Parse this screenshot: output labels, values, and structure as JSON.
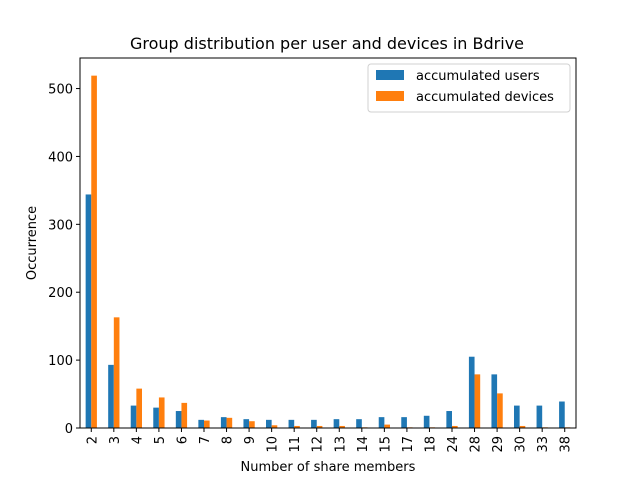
{
  "chart_data": {
    "type": "bar",
    "title": "Group distribution per user and devices in Bdrive",
    "xlabel": "Number of share members",
    "ylabel": "Occurrence",
    "categories": [
      "2",
      "3",
      "4",
      "5",
      "6",
      "7",
      "8",
      "9",
      "10",
      "11",
      "12",
      "13",
      "14",
      "15",
      "17",
      "18",
      "24",
      "28",
      "29",
      "30",
      "33",
      "38"
    ],
    "series": [
      {
        "name": "accumulated users",
        "color": "#1f77b4",
        "values": [
          344,
          93,
          33,
          30,
          25,
          12,
          16,
          13,
          12,
          12,
          12,
          13,
          13,
          16,
          16,
          18,
          25,
          105,
          79,
          33,
          33,
          39
        ]
      },
      {
        "name": "accumulated devices",
        "color": "#ff7f0e",
        "values": [
          519,
          163,
          58,
          45,
          37,
          11,
          15,
          10,
          4,
          3,
          3,
          3,
          1,
          5,
          1,
          1,
          3,
          79,
          51,
          3,
          1,
          1
        ]
      }
    ],
    "ylim": [
      0,
      545
    ],
    "yticks": [
      0,
      100,
      200,
      300,
      400,
      500
    ],
    "legend_position": "top-right",
    "grid": false
  }
}
